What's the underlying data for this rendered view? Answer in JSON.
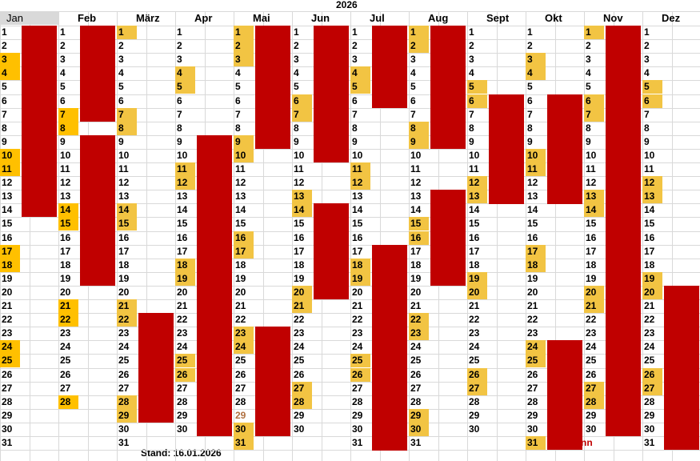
{
  "year": "2026",
  "stand": "Stand: 16.01.2026",
  "months": [
    {
      "name": "Jan",
      "days": 31,
      "hl": [
        3,
        4,
        10,
        11,
        17,
        18,
        24,
        25
      ],
      "orange": true,
      "bars": [
        [
          1,
          14
        ]
      ]
    },
    {
      "name": "Feb",
      "days": 28,
      "hl": [
        7,
        8,
        14,
        15,
        21,
        22,
        28
      ],
      "orange": true,
      "bars": [
        [
          1,
          7
        ],
        [
          9,
          19
        ]
      ]
    },
    {
      "name": "März",
      "days": 31,
      "hl": [
        1,
        7,
        8,
        14,
        15,
        21,
        22,
        28,
        29
      ],
      "orange": false,
      "bars": [
        [
          22,
          29
        ]
      ]
    },
    {
      "name": "Apr",
      "days": 30,
      "hl": [
        4,
        5,
        11,
        12,
        18,
        19,
        25,
        26
      ],
      "orange": false,
      "bars": [
        [
          9,
          30
        ]
      ]
    },
    {
      "name": "Mai",
      "days": 31,
      "hl": [
        1,
        2,
        3,
        9,
        10,
        16,
        17,
        23,
        24,
        30,
        31
      ],
      "orange": false,
      "bars": [
        [
          1,
          9
        ],
        [
          23,
          30
        ]
      ]
    },
    {
      "name": "Jun",
      "days": 30,
      "hl": [
        6,
        7,
        13,
        14,
        20,
        21,
        27,
        28
      ],
      "orange": false,
      "bars": [
        [
          1,
          10
        ],
        [
          14,
          20
        ]
      ]
    },
    {
      "name": "Jul",
      "days": 31,
      "hl": [
        4,
        5,
        11,
        12,
        18,
        19,
        25,
        26
      ],
      "orange": false,
      "bars": [
        [
          1,
          6
        ],
        [
          17,
          31
        ]
      ]
    },
    {
      "name": "Aug",
      "days": 31,
      "hl": [
        1,
        2,
        8,
        9,
        15,
        16,
        22,
        23,
        29,
        30
      ],
      "orange": false,
      "bars": [
        [
          1,
          9
        ],
        [
          13,
          19
        ]
      ]
    },
    {
      "name": "Sept",
      "days": 30,
      "hl": [
        5,
        6,
        12,
        13,
        19,
        20,
        26,
        27
      ],
      "orange": false,
      "bars": [
        [
          6,
          13
        ]
      ]
    },
    {
      "name": "Okt",
      "days": 31,
      "hl": [
        3,
        4,
        10,
        11,
        17,
        18,
        24,
        25,
        31
      ],
      "orange": false,
      "bars": [
        [
          6,
          13
        ],
        [
          24,
          31
        ]
      ]
    },
    {
      "name": "Nov",
      "days": 30,
      "hl": [
        1,
        6,
        7,
        13,
        14,
        20,
        21,
        27,
        28
      ],
      "orange": false,
      "bars": [
        [
          1,
          30
        ]
      ]
    },
    {
      "name": "Dez",
      "days": 31,
      "hl": [
        5,
        6,
        12,
        13,
        19,
        20,
        26,
        27
      ],
      "orange": false,
      "bars": [
        [
          20,
          31
        ]
      ]
    }
  ],
  "special": {
    "mai29": "29",
    "okt31_mark": "nn"
  }
}
